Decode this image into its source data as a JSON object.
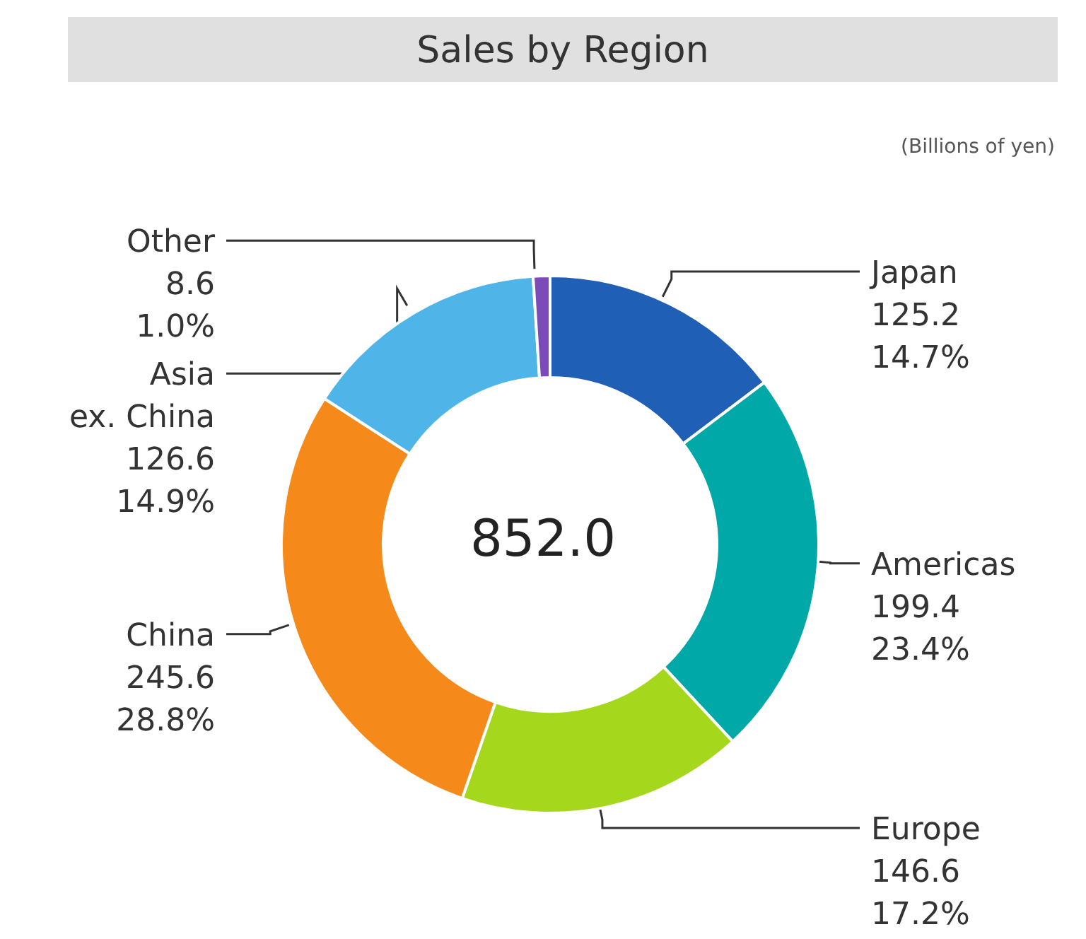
{
  "chart_data": {
    "type": "donut",
    "title": "Sales by Region",
    "subtitle": "(Billions of yen)",
    "categories": [
      "Japan",
      "Americas",
      "Europe",
      "China",
      "Asia ex. China",
      "Other"
    ],
    "values": [
      125.2,
      199.4,
      146.6,
      245.6,
      126.6,
      8.6
    ],
    "colors": [
      "#1f5fb5",
      "#00a8a8",
      "#a5d81c",
      "#f5891a",
      "#4fb5e8",
      "#7b4bb8"
    ],
    "value_labels": [
      "125.2\n14.7%",
      "199.4\n23.4%",
      "146.6\n17.2%",
      "245.6\n28.8%",
      "126.6\n14.9%",
      "8.6\n1.0%"
    ],
    "annotations": [
      "852.0"
    ]
  }
}
